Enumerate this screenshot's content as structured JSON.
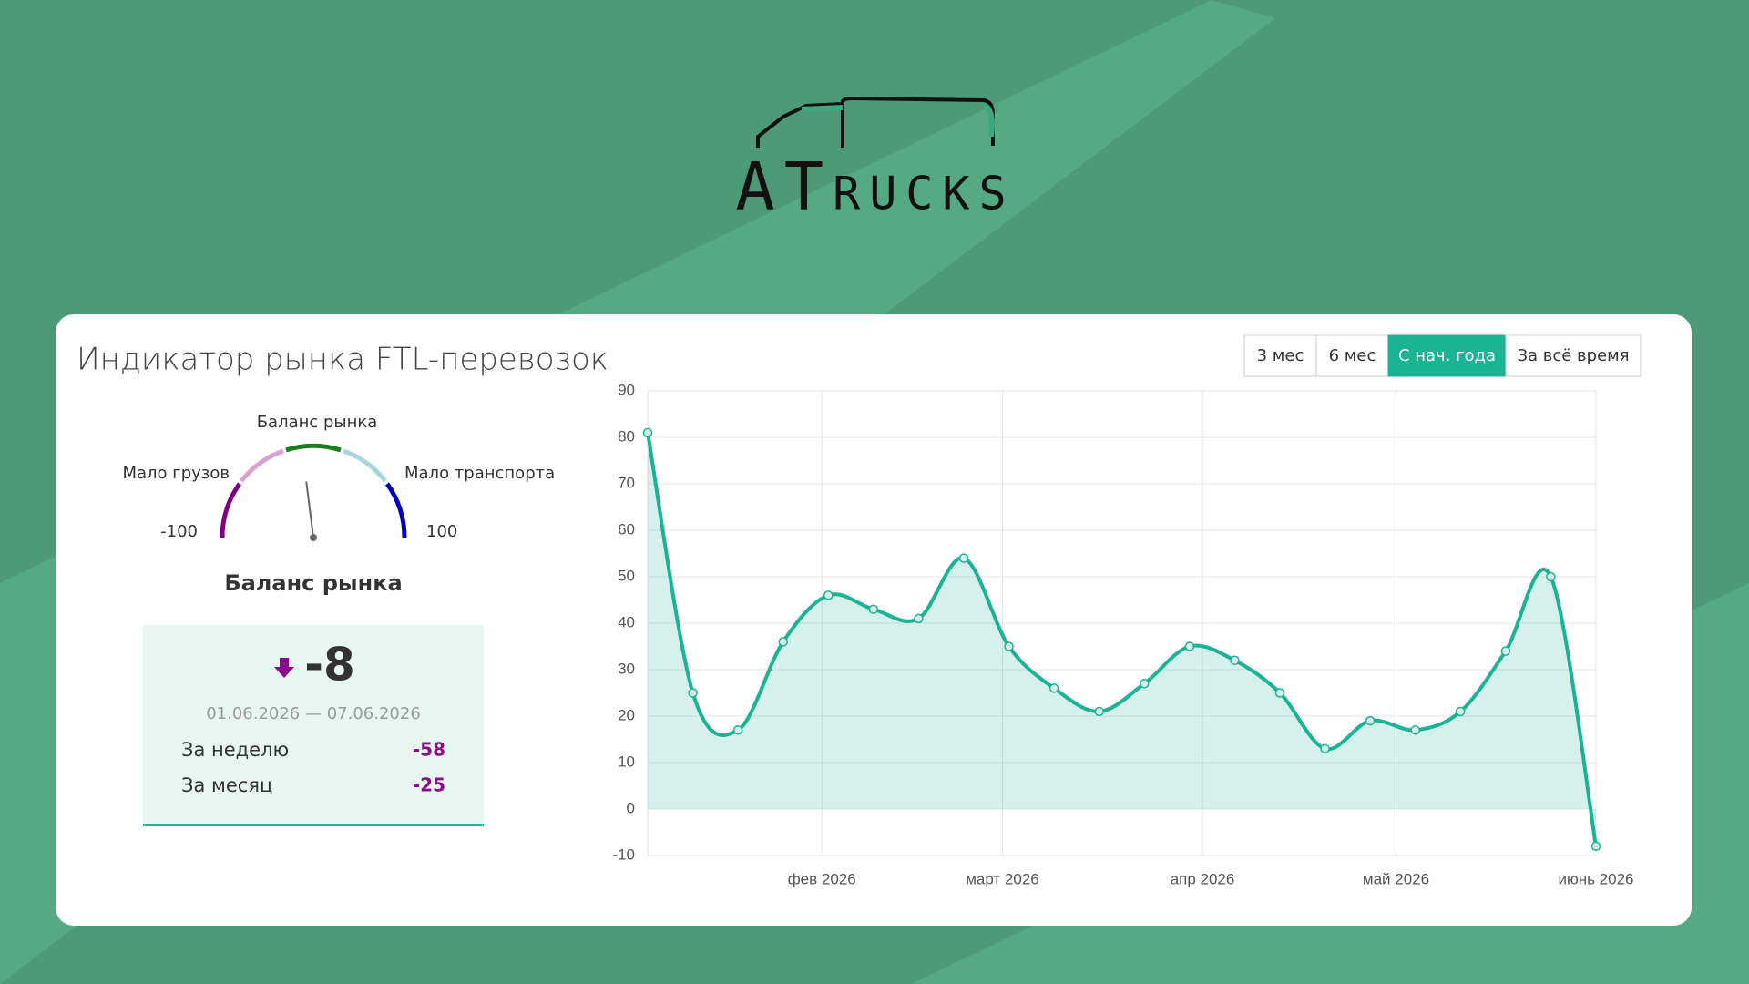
{
  "logo": "ATrucks",
  "panel": {
    "title": "Индикатор рынка FTL-перевозок",
    "buttons": [
      "3 мес",
      "6 мес",
      "С нач. года",
      "За всё время"
    ],
    "active_button": 2
  },
  "gauge": {
    "title": "Баланс рынка",
    "left_label": "Мало грузов",
    "right_label": "Мало транспорта",
    "min": -100,
    "max": 100,
    "caption": "Баланс рынка"
  },
  "indicator": {
    "value": -8,
    "period": "01.06.2026 — 07.06.2026",
    "rows": [
      {
        "label": "За неделю",
        "value": -58
      },
      {
        "label": "За месяц",
        "value": -25
      }
    ]
  },
  "chart_data": {
    "type": "line",
    "color": "#1ab394",
    "grid": true,
    "x": [
      "2026-01-05",
      "2026-01-12",
      "2026-01-19",
      "2026-01-26",
      "2026-02-02",
      "2026-02-09",
      "2026-02-16",
      "2026-02-23",
      "2026-03-02",
      "2026-03-09",
      "2026-03-16",
      "2026-03-23",
      "2026-03-30",
      "2026-04-06",
      "2026-04-13",
      "2026-04-20",
      "2026-04-27",
      "2026-05-04",
      "2026-05-11",
      "2026-05-18",
      "2026-05-25",
      "2026-06-01"
    ],
    "values": [
      81,
      25,
      17,
      36,
      46,
      43,
      41,
      54,
      35,
      26,
      21,
      27,
      35,
      32,
      25,
      13,
      19,
      17,
      21,
      34,
      50,
      -8
    ],
    "xlim": [
      "2026-01-05",
      "2026-06-01"
    ],
    "xticks": [
      {
        "value": "2026-02-01",
        "label": "фев 2026"
      },
      {
        "value": "2026-03-01",
        "label": "март 2026"
      },
      {
        "value": "2026-04-01",
        "label": "апр 2026"
      },
      {
        "value": "2026-05-01",
        "label": "май 2026"
      },
      {
        "value": "2026-06-01",
        "label": "июнь 2026"
      }
    ],
    "ylim": [
      -10,
      90
    ],
    "yticks": [
      -10,
      0,
      10,
      20,
      30,
      40,
      50,
      60,
      70,
      80,
      90
    ]
  }
}
